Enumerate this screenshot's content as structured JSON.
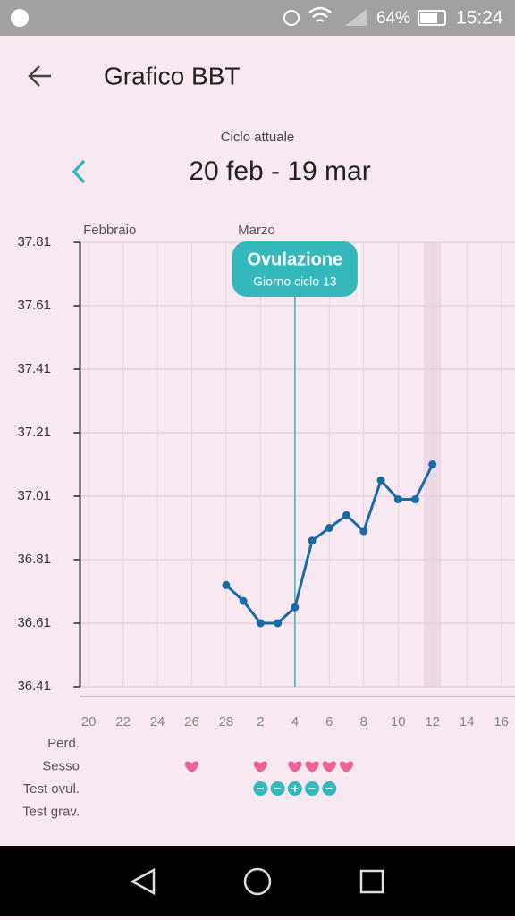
{
  "status_bar": {
    "battery": "64%",
    "time": "15:24"
  },
  "header": {
    "title": "Grafico BBT"
  },
  "cycle": {
    "label": "Ciclo attuale",
    "range": "20 feb - 19 mar"
  },
  "chart_data": {
    "type": "line",
    "x": [
      8,
      9,
      10,
      11,
      12,
      13,
      14,
      15,
      16,
      17,
      18,
      19,
      20
    ],
    "values": [
      36.73,
      36.68,
      36.61,
      36.61,
      36.66,
      36.87,
      36.91,
      36.95,
      36.9,
      37.06,
      37.0,
      37.0,
      37.11
    ],
    "color": "#1b6aa5",
    "xlim": [
      -0.5,
      24.8
    ],
    "ylim": [
      36.41,
      37.81
    ],
    "yticks": [
      36.41,
      36.61,
      36.81,
      37.01,
      37.21,
      37.41,
      37.61,
      37.81
    ],
    "xticks": [
      {
        "value": 0,
        "label": "20"
      },
      {
        "value": 2,
        "label": "22"
      },
      {
        "value": 4,
        "label": "24"
      },
      {
        "value": 6,
        "label": "26"
      },
      {
        "value": 8,
        "label": "28"
      },
      {
        "value": 10,
        "label": "2"
      },
      {
        "value": 12,
        "label": "4"
      },
      {
        "value": 14,
        "label": "6"
      },
      {
        "value": 16,
        "label": "8"
      },
      {
        "value": 18,
        "label": "10"
      },
      {
        "value": 20,
        "label": "12"
      },
      {
        "value": 22,
        "label": "14"
      },
      {
        "value": 24,
        "label": "16"
      }
    ],
    "month_labels": [
      {
        "value": 0,
        "label": "Febbraio"
      },
      {
        "value": 9,
        "label": "Marzo"
      }
    ],
    "grid": true,
    "annotation": {
      "x": 12,
      "title": "Ovulazione",
      "subtitle": "Giorno ciclo 13",
      "color": "#35b8bb"
    },
    "highlight": {
      "x": 20
    },
    "event_rows": [
      {
        "label": "Perd."
      },
      {
        "label": "Sesso",
        "days": [
          6,
          10,
          12,
          13,
          14,
          15
        ],
        "color": "#ea6499"
      },
      {
        "label": "Test ovul.",
        "days": [
          10,
          11,
          12,
          13,
          14
        ],
        "results": [
          "−",
          "−",
          "+",
          "−",
          "−"
        ],
        "color": "#35b8bb"
      },
      {
        "label": "Test grav."
      }
    ]
  }
}
